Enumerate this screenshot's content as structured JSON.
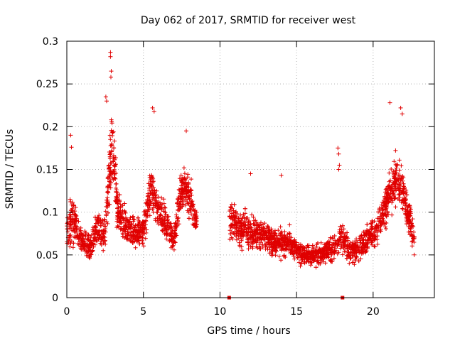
{
  "chart_data": {
    "type": "scatter",
    "title": "Day 062 of 2017, SRMTID for receiver west",
    "xlabel": "GPS time / hours",
    "ylabel": "SRMTID / TECUs",
    "xlim": [
      0,
      24
    ],
    "ylim": [
      0,
      0.3
    ],
    "x_ticks": [
      0,
      5,
      10,
      15,
      20
    ],
    "x_tick_labels": [
      "0",
      "5",
      "10",
      "15",
      "20"
    ],
    "y_ticks": [
      0,
      0.05,
      0.1,
      0.15,
      0.2,
      0.25,
      0.3
    ],
    "y_tick_labels": [
      "0",
      "0.05",
      "0.1",
      "0.15",
      "0.2",
      "0.25",
      "0.3"
    ],
    "grid": true,
    "marker": "plus",
    "series": [
      {
        "name": "SRMTID",
        "color": "#e00000",
        "profile": [
          {
            "t": 0.0,
            "base": 0.075,
            "spread": 0.03
          },
          {
            "t": 0.3,
            "base": 0.095,
            "spread": 0.045
          },
          {
            "t": 0.7,
            "base": 0.08,
            "spread": 0.03
          },
          {
            "t": 1.0,
            "base": 0.065,
            "spread": 0.025
          },
          {
            "t": 1.5,
            "base": 0.06,
            "spread": 0.025
          },
          {
            "t": 2.0,
            "base": 0.08,
            "spread": 0.03
          },
          {
            "t": 2.5,
            "base": 0.075,
            "spread": 0.03
          },
          {
            "t": 2.8,
            "base": 0.15,
            "spread": 0.06
          },
          {
            "t": 3.0,
            "base": 0.18,
            "spread": 0.08
          },
          {
            "t": 3.3,
            "base": 0.1,
            "spread": 0.04
          },
          {
            "t": 4.0,
            "base": 0.08,
            "spread": 0.03
          },
          {
            "t": 4.6,
            "base": 0.075,
            "spread": 0.03
          },
          {
            "t": 5.0,
            "base": 0.08,
            "spread": 0.03
          },
          {
            "t": 5.5,
            "base": 0.13,
            "spread": 0.05
          },
          {
            "t": 5.8,
            "base": 0.11,
            "spread": 0.04
          },
          {
            "t": 6.5,
            "base": 0.085,
            "spread": 0.035
          },
          {
            "t": 7.0,
            "base": 0.07,
            "spread": 0.03
          },
          {
            "t": 7.5,
            "base": 0.13,
            "spread": 0.04
          },
          {
            "t": 8.0,
            "base": 0.12,
            "spread": 0.04
          },
          {
            "t": 8.4,
            "base": 0.09,
            "spread": 0.02
          },
          {
            "t": 10.7,
            "base": 0.09,
            "spread": 0.035
          },
          {
            "t": 11.5,
            "base": 0.08,
            "spread": 0.035
          },
          {
            "t": 12.5,
            "base": 0.075,
            "spread": 0.03
          },
          {
            "t": 13.5,
            "base": 0.065,
            "spread": 0.028
          },
          {
            "t": 14.5,
            "base": 0.065,
            "spread": 0.028
          },
          {
            "t": 15.5,
            "base": 0.05,
            "spread": 0.02
          },
          {
            "t": 16.5,
            "base": 0.05,
            "spread": 0.02
          },
          {
            "t": 17.5,
            "base": 0.06,
            "spread": 0.025
          },
          {
            "t": 18.0,
            "base": 0.07,
            "spread": 0.03
          },
          {
            "t": 18.5,
            "base": 0.05,
            "spread": 0.025
          },
          {
            "t": 19.5,
            "base": 0.065,
            "spread": 0.025
          },
          {
            "t": 20.5,
            "base": 0.09,
            "spread": 0.035
          },
          {
            "t": 21.5,
            "base": 0.14,
            "spread": 0.05
          },
          {
            "t": 22.0,
            "base": 0.12,
            "spread": 0.045
          },
          {
            "t": 22.7,
            "base": 0.07,
            "spread": 0.03
          }
        ],
        "gaps": [
          [
            8.5,
            10.6
          ]
        ],
        "points_per_hour": 160,
        "outliers": [
          {
            "x": 2.85,
            "y": 0.287
          },
          {
            "x": 2.85,
            "y": 0.282
          },
          {
            "x": 2.9,
            "y": 0.265
          },
          {
            "x": 2.88,
            "y": 0.258
          },
          {
            "x": 2.55,
            "y": 0.235
          },
          {
            "x": 2.6,
            "y": 0.23
          },
          {
            "x": 0.25,
            "y": 0.19
          },
          {
            "x": 0.3,
            "y": 0.176
          },
          {
            "x": 5.6,
            "y": 0.222
          },
          {
            "x": 5.7,
            "y": 0.218
          },
          {
            "x": 17.7,
            "y": 0.175
          },
          {
            "x": 17.75,
            "y": 0.168
          },
          {
            "x": 17.8,
            "y": 0.155
          },
          {
            "x": 17.75,
            "y": 0.15
          },
          {
            "x": 21.1,
            "y": 0.228
          },
          {
            "x": 21.8,
            "y": 0.222
          },
          {
            "x": 21.9,
            "y": 0.215
          },
          {
            "x": 7.8,
            "y": 0.195
          },
          {
            "x": 14.0,
            "y": 0.143
          },
          {
            "x": 12.0,
            "y": 0.145
          }
        ],
        "zero_points": [
          {
            "x": 10.6,
            "y": 0
          },
          {
            "x": 18.0,
            "y": 0
          }
        ]
      }
    ]
  }
}
